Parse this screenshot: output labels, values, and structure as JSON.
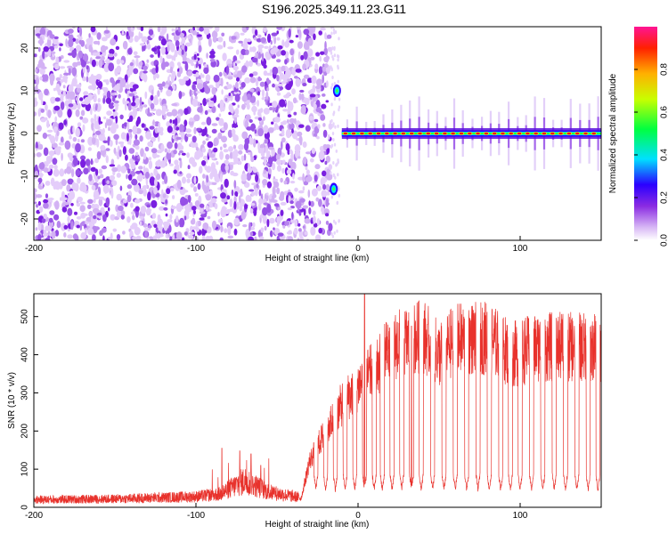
{
  "title": "S196.2025.349.11.23.G11",
  "chart_data": [
    {
      "type": "heatmap",
      "name": "spectrogram",
      "xlabel": "Height of straight line (km)",
      "ylabel": "Frequency (Hz)",
      "xlim": [
        -200,
        150
      ],
      "ylim": [
        -25,
        25
      ],
      "x_ticks": [
        -200,
        -100,
        0,
        100
      ],
      "y_ticks": [
        -20,
        -10,
        0,
        10,
        20
      ],
      "colorbar": {
        "label": "Normalized spectral amplitude",
        "range": [
          0.0,
          1.0
        ],
        "ticks": [
          "0.0",
          "0.2",
          "0.4",
          "0.6",
          "0.8"
        ],
        "tick_values": [
          0.0,
          0.2,
          0.4,
          0.6,
          0.8
        ]
      },
      "noise_region_x": [
        -200,
        -17
      ],
      "signal_frequency_hz": 0,
      "signal_start_km": -10,
      "spot_features": [
        {
          "x": -13,
          "y": 10,
          "amplitude": 0.35
        },
        {
          "x": -15,
          "y": -13,
          "amplitude": 0.45
        }
      ],
      "colors": [
        "#ffffff",
        "#d7b7f5",
        "#7b1fe0",
        "#2b00ff",
        "#00e5ff",
        "#00ff00",
        "#ffff00",
        "#ff0000"
      ]
    },
    {
      "type": "line",
      "name": "snr",
      "xlabel": "Height of straight line (km)",
      "ylabel": "SNR (10 * v/v)",
      "xlim": [
        -200,
        150
      ],
      "ylim": [
        0,
        560
      ],
      "x_ticks": [
        -200,
        -100,
        0,
        100
      ],
      "y_ticks": [
        0,
        100,
        200,
        300,
        400,
        500
      ],
      "color": "#e8322c",
      "series_envelope": [
        {
          "x": -200,
          "y": 20
        },
        {
          "x": -150,
          "y": 22
        },
        {
          "x": -100,
          "y": 28
        },
        {
          "x": -85,
          "y": 35
        },
        {
          "x": -70,
          "y": 70
        },
        {
          "x": -55,
          "y": 40
        },
        {
          "x": -35,
          "y": 25
        },
        {
          "x": -30,
          "y": 120
        },
        {
          "x": -20,
          "y": 200
        },
        {
          "x": -10,
          "y": 270
        },
        {
          "x": 0,
          "y": 320
        },
        {
          "x": 10,
          "y": 360
        },
        {
          "x": 20,
          "y": 420
        },
        {
          "x": 40,
          "y": 450
        },
        {
          "x": 50,
          "y": 400
        },
        {
          "x": 60,
          "y": 440
        },
        {
          "x": 80,
          "y": 445
        },
        {
          "x": 95,
          "y": 400
        },
        {
          "x": 110,
          "y": 420
        },
        {
          "x": 150,
          "y": 420
        }
      ],
      "spikes": [
        {
          "x": -84,
          "y": 155
        },
        {
          "x": -73,
          "y": 148
        },
        {
          "x": -66,
          "y": 140
        },
        {
          "x": -60,
          "y": 110
        },
        {
          "x": 4,
          "y": 560
        },
        {
          "x": 33,
          "y": 475
        },
        {
          "x": 43,
          "y": 480
        }
      ],
      "dropouts_x": [
        -26,
        -20,
        -14,
        -8,
        -2,
        4,
        10,
        15,
        21,
        27,
        33,
        39,
        46,
        53,
        60,
        67,
        74,
        81,
        88,
        94,
        100,
        107,
        114,
        121,
        128,
        135,
        142,
        148
      ],
      "dropout_floor": 40
    }
  ]
}
